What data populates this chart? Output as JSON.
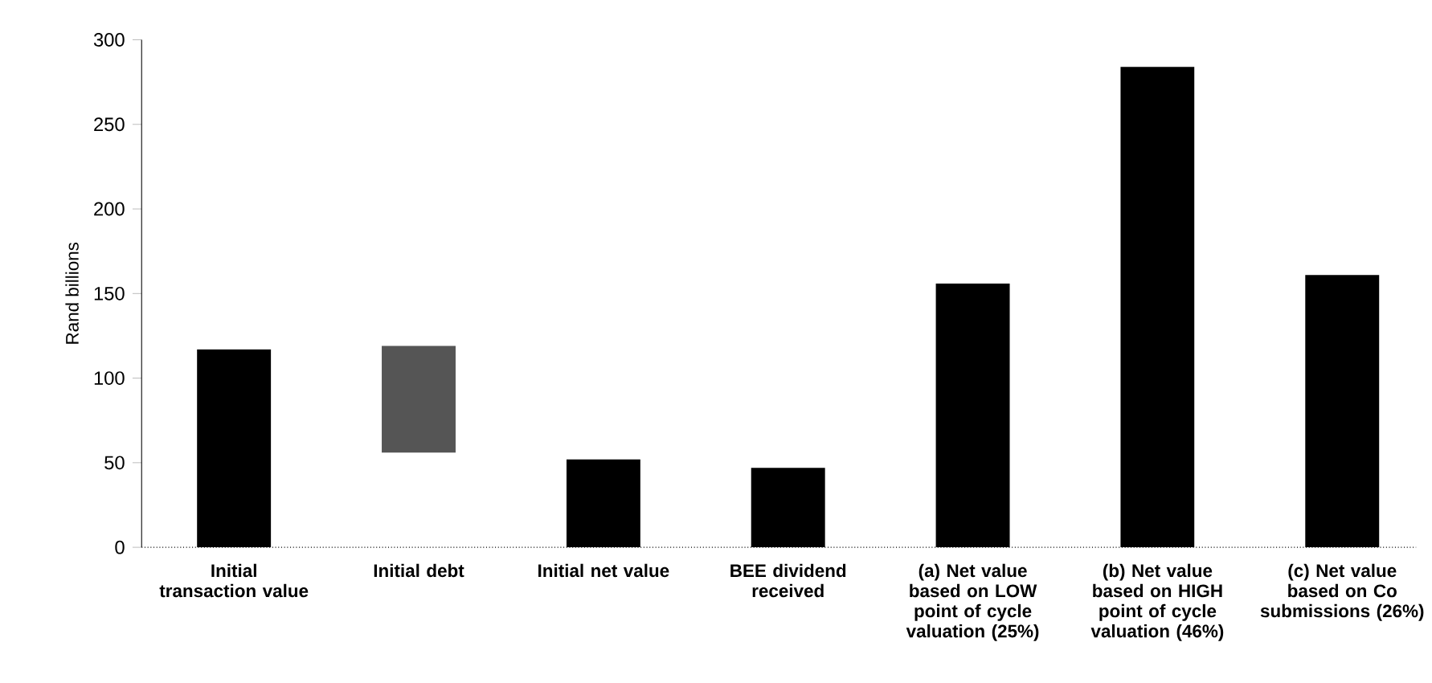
{
  "chart_data": {
    "type": "bar",
    "ylabel": "Rand billions",
    "categories": [
      "Initial transaction value",
      "Initial debt",
      "Initial net value",
      "BEE dividend received",
      "(a) Net value based on LOW point of cycle valuation (25%)",
      "(b) Net value based on HIGH point of cycle valuation (46%)",
      "(c) Net value based on Co submissions (26%)"
    ],
    "values": [
      117,
      63,
      52,
      47,
      156,
      284,
      161
    ],
    "base": [
      0,
      56,
      0,
      0,
      0,
      0,
      0
    ],
    "colors": [
      "#000000",
      "#555555",
      "#000000",
      "#000000",
      "#000000",
      "#000000",
      "#000000"
    ],
    "ylim": [
      0,
      300
    ],
    "yticks": [
      0,
      50,
      100,
      150,
      200,
      250,
      300
    ],
    "grid": false
  }
}
